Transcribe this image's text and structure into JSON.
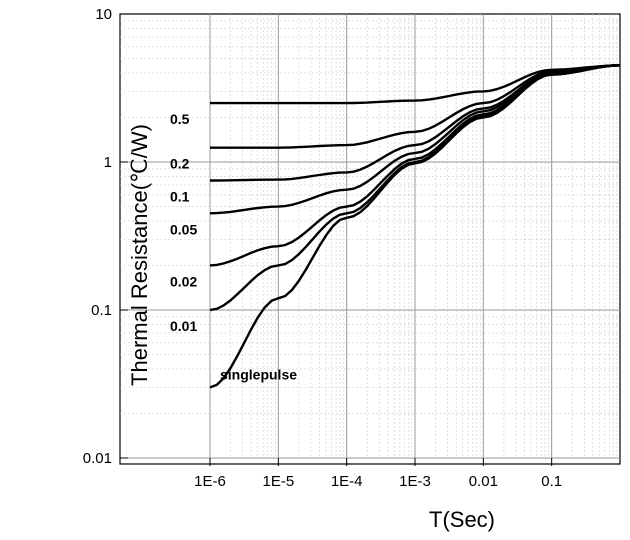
{
  "chart_data": {
    "type": "line",
    "title": "",
    "xlabel": "T(Sec)",
    "ylabel": "Thermal Resistance(℃/W)",
    "x_scale": "log",
    "y_scale": "log",
    "xlim": [
      1e-06,
      1
    ],
    "ylim": [
      0.01,
      10
    ],
    "grid": true,
    "x_ticks": [
      {
        "value": 1e-06,
        "label": "1E-6"
      },
      {
        "value": 1e-05,
        "label": "1E-5"
      },
      {
        "value": 0.0001,
        "label": "1E-4"
      },
      {
        "value": 0.001,
        "label": "1E-3"
      },
      {
        "value": 0.01,
        "label": "0.01"
      },
      {
        "value": 0.1,
        "label": "0.1"
      }
    ],
    "y_ticks": [
      {
        "value": 0.01,
        "label": "0.01"
      },
      {
        "value": 0.1,
        "label": "0.1"
      },
      {
        "value": 1,
        "label": "1"
      },
      {
        "value": 10,
        "label": "10"
      }
    ],
    "x": [
      1e-06,
      1e-05,
      0.0001,
      0.001,
      0.01,
      0.1,
      1
    ],
    "series": [
      {
        "name": "0.5",
        "values": [
          2.5,
          2.5,
          2.5,
          2.6,
          3.0,
          4.2,
          4.5
        ]
      },
      {
        "name": "0.2",
        "values": [
          1.25,
          1.25,
          1.3,
          1.6,
          2.5,
          4.1,
          4.5
        ]
      },
      {
        "name": "0.1",
        "values": [
          0.75,
          0.76,
          0.85,
          1.3,
          2.3,
          4.0,
          4.5
        ]
      },
      {
        "name": "0.05",
        "values": [
          0.45,
          0.5,
          0.65,
          1.15,
          2.2,
          4.0,
          4.5
        ]
      },
      {
        "name": "0.02",
        "values": [
          0.2,
          0.27,
          0.5,
          1.05,
          2.1,
          3.9,
          4.5
        ]
      },
      {
        "name": "0.01",
        "values": [
          0.1,
          0.2,
          0.45,
          1.0,
          2.05,
          3.9,
          4.5
        ]
      },
      {
        "name": "singlepulse",
        "values": [
          0.03,
          0.12,
          0.42,
          0.98,
          2.0,
          3.9,
          4.5
        ]
      }
    ]
  }
}
